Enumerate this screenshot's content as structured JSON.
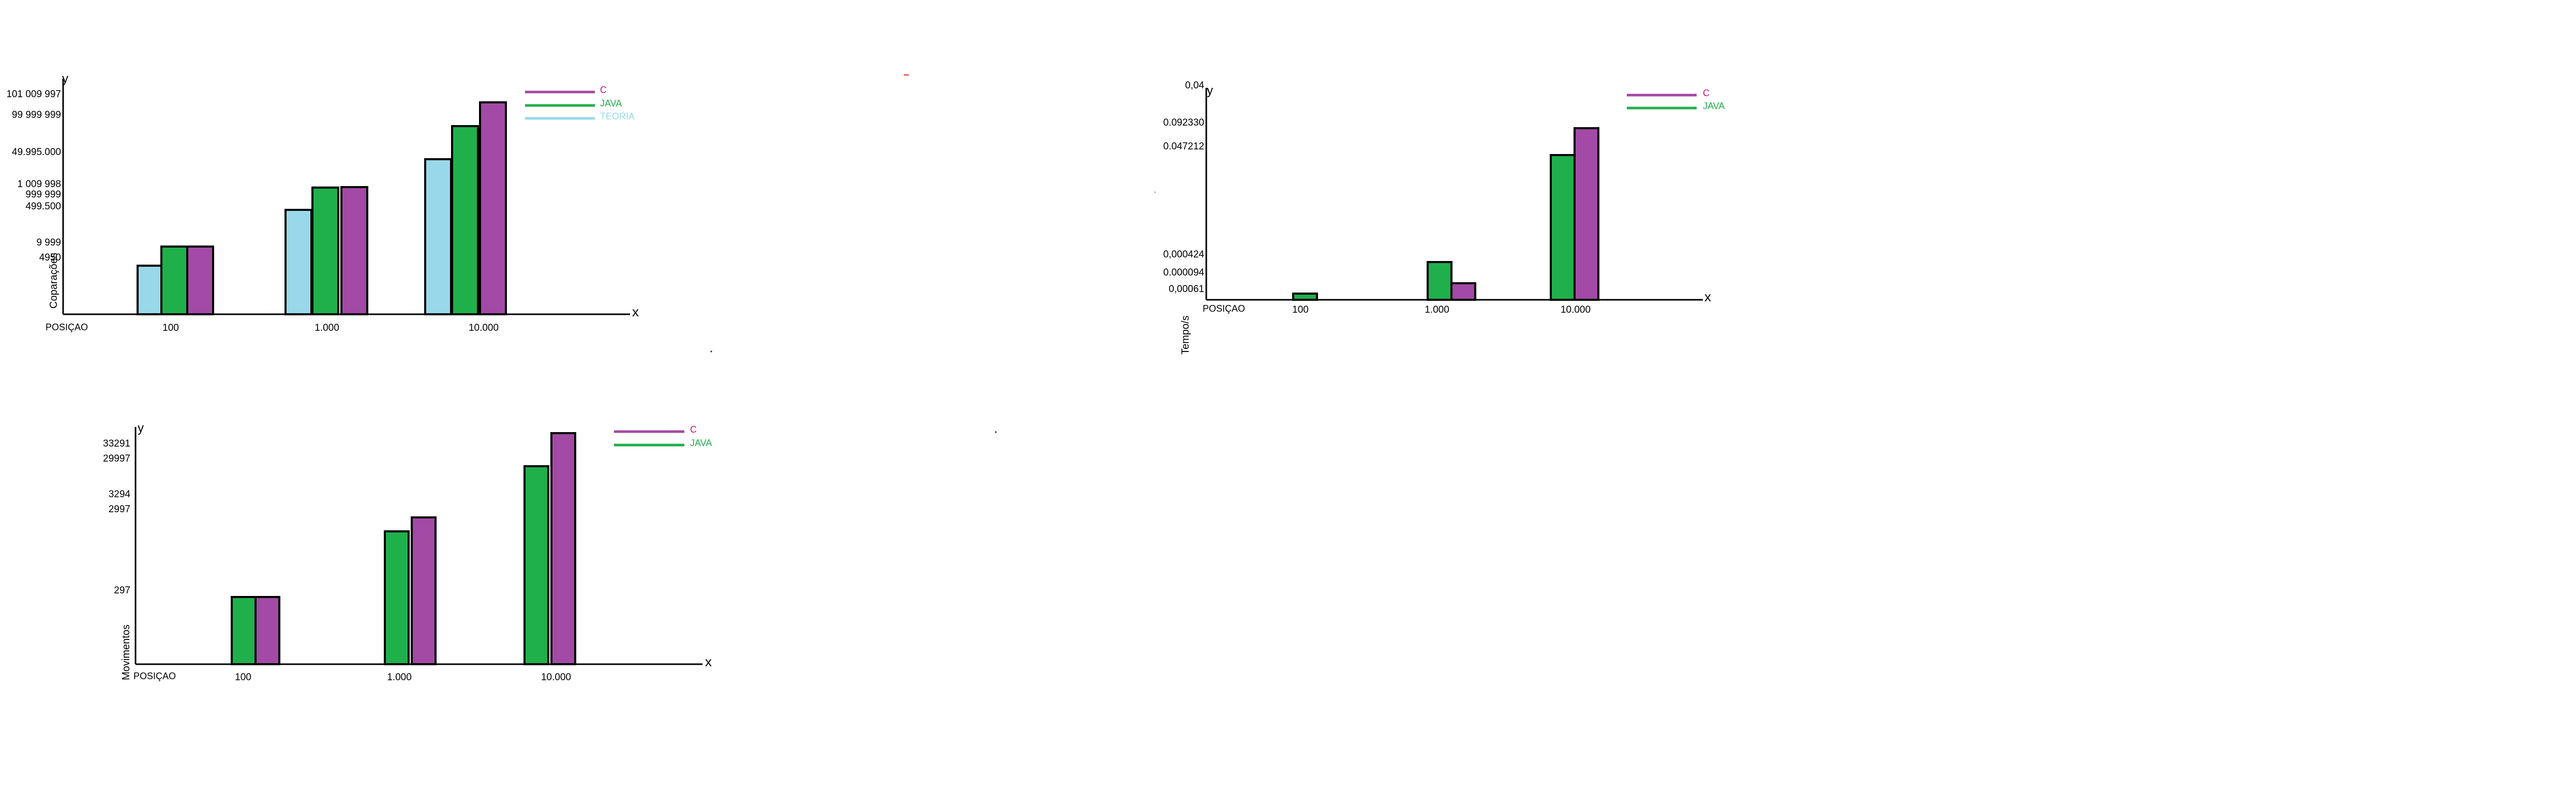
{
  "colors": {
    "c": "#a24aa5",
    "java": "#20b04b",
    "teoria": "#99d8ea",
    "axis": "#000000",
    "legend_c_text": "#c0187e",
    "legend_java_text": "#20b04b",
    "legend_teoria_text": "#99d8ea"
  },
  "chart_data": [
    {
      "type": "bar",
      "y_axis_symbol": "y",
      "x_axis_symbol": "x",
      "ylabel": "Coparações",
      "xlabel": "POSIÇAO",
      "categories": [
        "100",
        "1.000",
        "10.000"
      ],
      "ytick_labels": [
        "101 009 997",
        "99 999 999",
        "49.995.000",
        "1 009 998",
        "999 999",
        "499.500",
        "9 999",
        "4950"
      ],
      "legend": [
        "C",
        "JAVA",
        "TEORIA"
      ],
      "series": [
        {
          "name": "TEORIA",
          "key": "teoria",
          "values": [
            4950,
            499500,
            49995000
          ]
        },
        {
          "name": "JAVA",
          "key": "java",
          "values": [
            9999,
            999999,
            99999999
          ]
        },
        {
          "name": "C",
          "key": "c",
          "values": [
            9999,
            1009998,
            101009997
          ]
        }
      ]
    },
    {
      "type": "bar",
      "y_axis_symbol": "y",
      "x_axis_symbol": "x",
      "ylabel": "Tempo/s",
      "xlabel": "POSIÇAO",
      "categories": [
        "100",
        "1.000",
        "10.000"
      ],
      "ytick_labels": [
        "0,04",
        "0.092330",
        "0.047212",
        "0,000424",
        "0.000094",
        "0,00061"
      ],
      "legend": [
        "C",
        "JAVA"
      ],
      "series": [
        {
          "name": "JAVA",
          "key": "java",
          "values": [
            1e-05,
            0.000424,
            0.047212
          ]
        },
        {
          "name": "C",
          "key": "c",
          "values": [
            0,
            9.4e-05,
            0.09233
          ]
        }
      ]
    },
    {
      "type": "bar",
      "y_axis_symbol": "y",
      "x_axis_symbol": "x",
      "ylabel": "Movimentos",
      "xlabel": "POSIÇAO",
      "categories": [
        "100",
        "1.000",
        "10.000"
      ],
      "ytick_labels": [
        "33291",
        "29997",
        "3294",
        "2997",
        "297"
      ],
      "legend": [
        "C",
        "JAVA"
      ],
      "series": [
        {
          "name": "JAVA",
          "key": "java",
          "values": [
            297,
            2997,
            29997
          ]
        },
        {
          "name": "C",
          "key": "c",
          "values": [
            297,
            3294,
            33291
          ]
        }
      ]
    }
  ]
}
